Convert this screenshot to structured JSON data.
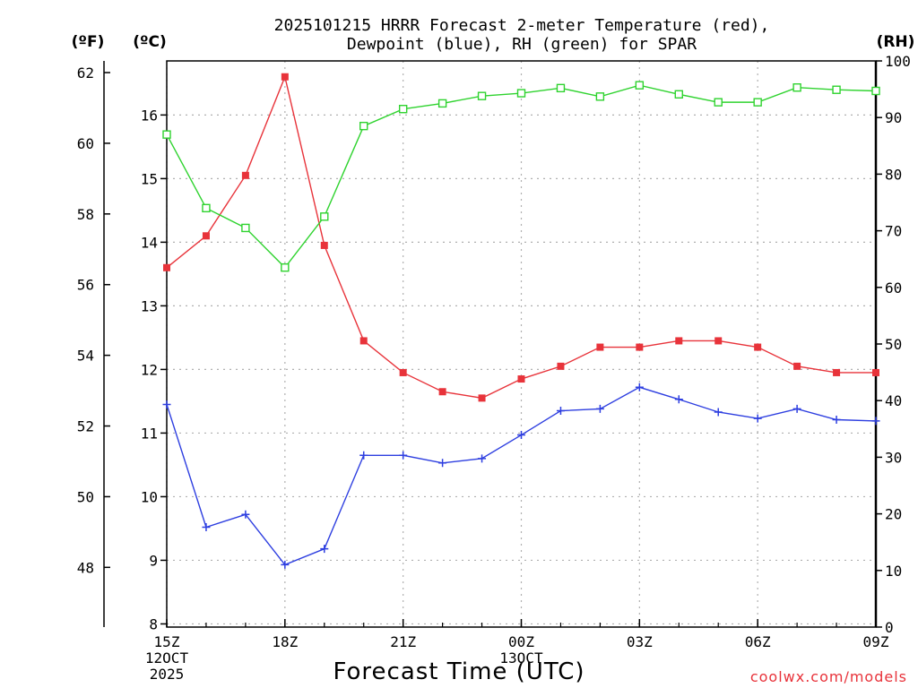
{
  "chart_data": {
    "type": "line",
    "title_line1": "2025101215 HRRR Forecast 2-meter Temperature (red),",
    "title_line2": "Dewpoint (blue), RH (green) for SPAR",
    "unit_f": "(ºF)",
    "unit_c": "(ºC)",
    "unit_rh": "(RH)",
    "xlabel": "Forecast Time (UTC)",
    "credit": "coolwx.com/models",
    "x_hours": [
      0,
      1,
      2,
      3,
      4,
      5,
      6,
      7,
      8,
      9,
      10,
      11,
      12,
      13,
      14,
      15,
      16,
      17,
      18
    ],
    "x_ticks": [
      {
        "hour": 0,
        "lines": [
          "15Z",
          "12OCT",
          "2025"
        ]
      },
      {
        "hour": 3,
        "lines": [
          "18Z"
        ]
      },
      {
        "hour": 6,
        "lines": [
          "21Z"
        ]
      },
      {
        "hour": 9,
        "lines": [
          "00Z",
          "13OCT"
        ]
      },
      {
        "hour": 12,
        "lines": [
          "03Z"
        ]
      },
      {
        "hour": 15,
        "lines": [
          "06Z"
        ]
      },
      {
        "hour": 18,
        "lines": [
          "09Z"
        ]
      }
    ],
    "celsius_axis": {
      "min": 7.95,
      "max": 16.85,
      "ticks": [
        8,
        9,
        10,
        11,
        12,
        13,
        14,
        15,
        16
      ]
    },
    "fahrenheit_axis": {
      "ticks": [
        48,
        50,
        52,
        54,
        56,
        58,
        60,
        62
      ]
    },
    "rh_axis": {
      "min": 0,
      "max": 100,
      "ticks": [
        0,
        10,
        20,
        30,
        40,
        50,
        60,
        70,
        80,
        90,
        100
      ]
    },
    "series": [
      {
        "name": "Temperature",
        "units": "C",
        "color": "#e8333a",
        "marker": "filled-square",
        "values": [
          13.6,
          14.1,
          15.05,
          16.6,
          13.95,
          12.45,
          11.95,
          11.65,
          11.55,
          11.85,
          12.05,
          12.35,
          12.35,
          12.45,
          12.45,
          12.35,
          12.05,
          11.95,
          11.95
        ]
      },
      {
        "name": "Dewpoint",
        "units": "C",
        "color": "#2d3ee0",
        "marker": "plus",
        "values": [
          11.45,
          9.52,
          9.72,
          8.93,
          9.18,
          10.65,
          10.65,
          10.53,
          10.6,
          10.97,
          11.35,
          11.38,
          11.72,
          11.53,
          11.33,
          11.23,
          11.38,
          11.21,
          11.19
        ]
      },
      {
        "name": "RH",
        "units": "%",
        "color": "#2fd32f",
        "marker": "open-square",
        "values": [
          87,
          74,
          70.5,
          63.5,
          72.5,
          88.5,
          91.5,
          92.5,
          93.8,
          94.3,
          95.2,
          93.7,
          95.7,
          94.1,
          92.7,
          92.7,
          95.3,
          94.9,
          94.7
        ]
      }
    ]
  }
}
